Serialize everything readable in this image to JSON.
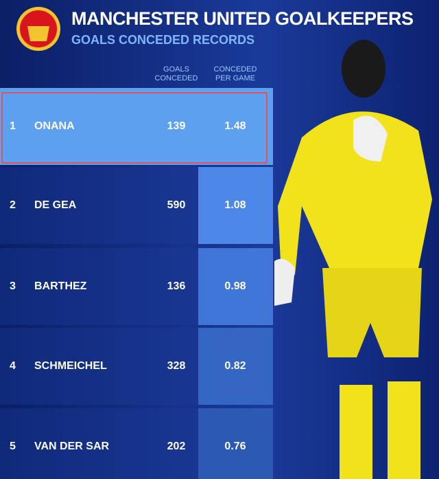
{
  "header": {
    "title": "MANCHESTER UNITED GOALKEEPERS",
    "subtitle": "GOALS CONCEDED RECORDS"
  },
  "table": {
    "columns": [
      "GOALS CONCEDED",
      "CONCEDED PER GAME"
    ],
    "rows": [
      [
        1,
        "ONANA",
        139,
        1.48
      ],
      [
        2,
        "DE GEA",
        590,
        1.08
      ],
      [
        3,
        "BARTHEZ",
        136,
        0.98
      ],
      [
        4,
        "SCHMEICHEL",
        328,
        0.82
      ],
      [
        5,
        "VAN DER SAR",
        202,
        0.76
      ]
    ]
  }
}
